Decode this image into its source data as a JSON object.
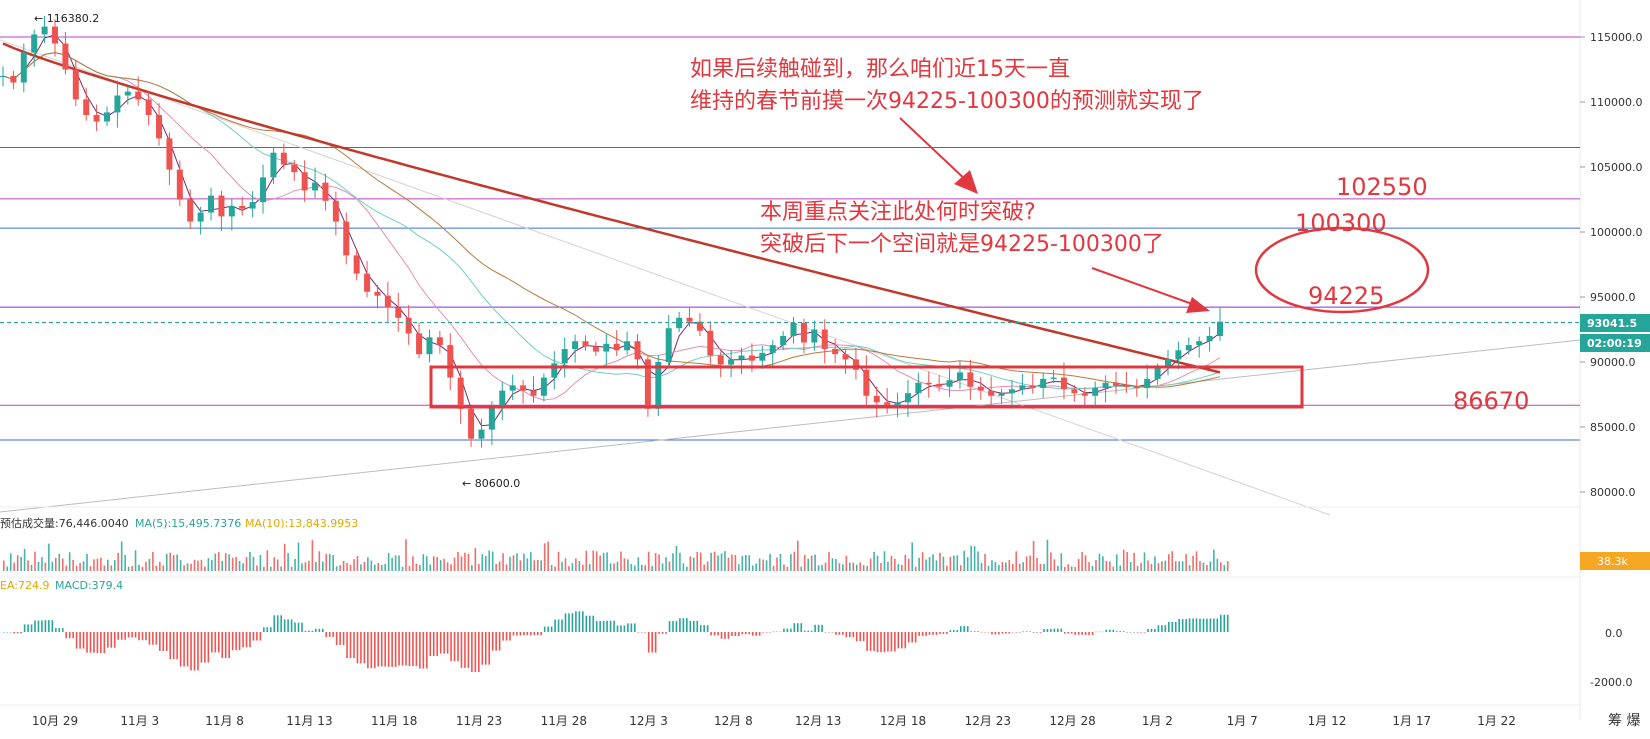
{
  "chart_data": {
    "type": "candlestick",
    "price_axis": {
      "ticks": [
        "115000.0",
        "110000.0",
        "105000.0",
        "100000.0",
        "95000.0",
        "90000.0",
        "85000.0",
        "80000.0"
      ],
      "ylim": [
        77000,
        118000
      ],
      "current_price": "93041.5",
      "countdown": "02:00:19"
    },
    "time_axis": {
      "labels": [
        "10月 29",
        "11月 3",
        "11月 8",
        "11月 13",
        "11月 18",
        "11月 23",
        "11月 28",
        "12月 3",
        "12月 8",
        "12月 13",
        "12月 18",
        "12月 23",
        "12月 28",
        "1月 2",
        "1月 7",
        "1月 12",
        "1月 17",
        "1月 22"
      ]
    },
    "high_marker": "← 116380.2",
    "low_marker": "← 80600.0",
    "horizontal_levels": [
      {
        "value": 115000,
        "color": "#c040c0"
      },
      {
        "value": 106500,
        "color": "#3b6fc9"
      },
      {
        "value": 102550,
        "color": "#c040c0"
      },
      {
        "value": 100300,
        "color": "#3b6fc9"
      },
      {
        "value": 94225,
        "color": "#8a2be2"
      },
      {
        "value": 86670,
        "color": "#c040c0"
      },
      {
        "value": 84000,
        "color": "#3b6fc9"
      }
    ],
    "series": [
      {
        "values": [
          112000,
          111500,
          113800,
          115200,
          115800,
          114500,
          112500,
          110200,
          109000,
          108500,
          109200,
          110500,
          110800,
          110200,
          109000,
          107200,
          104800,
          102500,
          100800,
          101500,
          102800,
          101200,
          102000,
          101800,
          102300,
          104200,
          106100,
          105200,
          104600,
          103200,
          103800,
          102400,
          100800,
          98200,
          96800,
          95400,
          95100,
          94200,
          93400,
          92200,
          90600,
          91900,
          91300,
          88800,
          86400,
          84100,
          84800,
          86600,
          87800,
          88200,
          87800,
          87400,
          88800,
          89900,
          91000,
          91600,
          91200,
          90800,
          91400,
          90900,
          91600,
          90200,
          86400,
          90000,
          92600,
          93400,
          93100,
          92400,
          90500,
          89800,
          90200,
          90500,
          90100,
          90700,
          91300,
          92000,
          93000,
          91500,
          92500,
          91000,
          90600,
          90200,
          89400,
          87400,
          86900,
          86700,
          86900,
          87600,
          88400,
          88300,
          88100,
          88600,
          89200,
          88100,
          87800,
          87400,
          87600,
          87900,
          88200,
          88000,
          88700,
          88800,
          87900,
          87600,
          87400,
          88000,
          88400,
          88200,
          88100,
          88000,
          88700,
          89500,
          90200,
          90900,
          91300,
          91600,
          92000,
          93100
        ]
      }
    ],
    "indicators": {
      "volume_legend": "预估成交量:76,446.0040",
      "ma5_legend": "MA(5):15,495.7376",
      "ma10_legend": "MA(10):13,843.9953",
      "volume_axis_value": "38.3k",
      "macd_dea_legend": "EA:724.9",
      "macd_legend": "MACD:379.4",
      "macd_ticks": [
        "0.0",
        "-2000.0"
      ]
    },
    "annotations": {
      "top_text_line1": "如果后续触碰到，那么咱们近15天一直",
      "top_text_line2": "维持的春节前摸一次94225-100300的预测就实现了",
      "mid_text_line1": "本周重点关注此处何时突破?",
      "mid_text_line2": "突破后下一个空间就是94225-100300了",
      "label_102550": "102550",
      "label_100300": "100300",
      "label_94225": "94225",
      "label_86670": "86670"
    },
    "colors": {
      "up": "#26a69a",
      "down": "#ef5350",
      "annotation": "#e0383e",
      "ma_red": "#c0392b",
      "price_tag": "#26a69a",
      "volume_tag": "#f5a623"
    }
  },
  "footer": {
    "corner_text": "筹 爆"
  }
}
